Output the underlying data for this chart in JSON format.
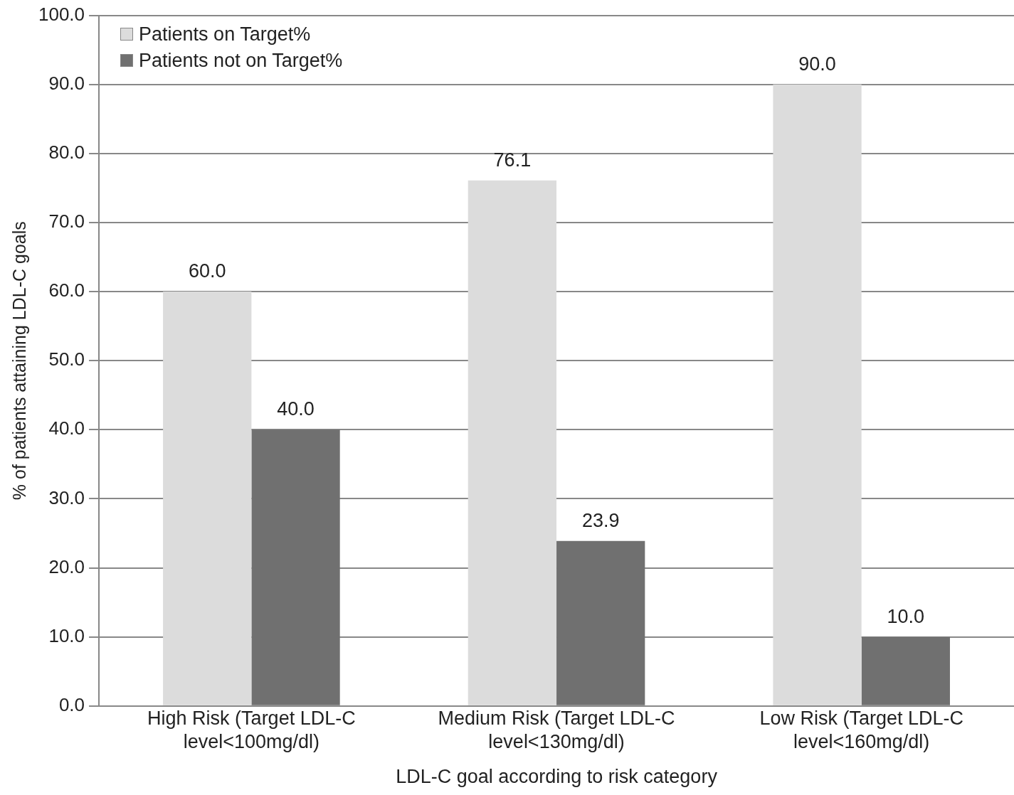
{
  "chart_data": {
    "type": "bar",
    "xlabel": "LDL-C goal according to risk category",
    "ylabel": "% of patients attaining LDL-C goals",
    "categories": [
      "High Risk (Target LDL-C level<100mg/dl)",
      "Medium Risk (Target LDL-C level<130mg/dl)",
      "Low Risk (Target LDL-C level<160mg/dl)"
    ],
    "series": [
      {
        "name": "Patients on Target%",
        "color": "#dcdcdc",
        "values": [
          60.0,
          76.1,
          90.0
        ],
        "value_labels": [
          "60.0",
          "76.1",
          "90.0"
        ]
      },
      {
        "name": "Patients not on Target%",
        "color": "#707070",
        "values": [
          40.0,
          23.9,
          10.0
        ],
        "value_labels": [
          "40.0",
          "23.9",
          "10.0"
        ]
      }
    ],
    "ylim": [
      0,
      100
    ],
    "yticks": [
      {
        "value": 0,
        "label": "0.0"
      },
      {
        "value": 10,
        "label": "10.0"
      },
      {
        "value": 20,
        "label": "20.0"
      },
      {
        "value": 30,
        "label": "30.0"
      },
      {
        "value": 40,
        "label": "40.0"
      },
      {
        "value": 50,
        "label": "50.0"
      },
      {
        "value": 60,
        "label": "60.0"
      },
      {
        "value": 70,
        "label": "70.0"
      },
      {
        "value": 80,
        "label": "80.0"
      },
      {
        "value": 90,
        "label": "90.0"
      },
      {
        "value": 100,
        "label": "100.0"
      }
    ],
    "grid": "y",
    "legend": "top left"
  }
}
